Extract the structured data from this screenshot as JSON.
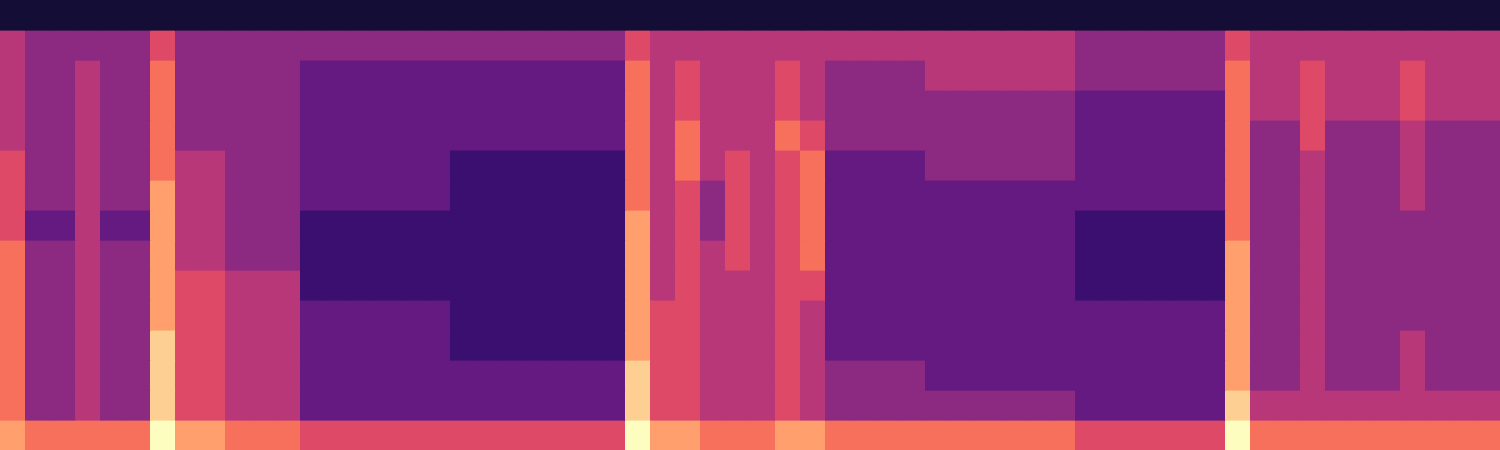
{
  "chart_data": {
    "type": "heatmap",
    "tick_labels": false,
    "xlim": [
      0,
      60
    ],
    "ylim": [
      0,
      15
    ],
    "color_range": [
      0,
      10
    ],
    "cells": [
      [
        8,
        7,
        7,
        7,
        7,
        7,
        10,
        8,
        8,
        7,
        7,
        7,
        6,
        6,
        6,
        6,
        6,
        6,
        6,
        6,
        6,
        6,
        6,
        6,
        6,
        10,
        8,
        8,
        7,
        7,
        7,
        8,
        8,
        7,
        7,
        7,
        7,
        7,
        7,
        7,
        7,
        7,
        7,
        6,
        6,
        6,
        6,
        6,
        6,
        10,
        7,
        7,
        7,
        7,
        7,
        7,
        7,
        7,
        7,
        7
      ],
      [
        7,
        4,
        4,
        5,
        4,
        4,
        9,
        6,
        6,
        5,
        5,
        5,
        3,
        3,
        3,
        3,
        3,
        3,
        3,
        3,
        3,
        3,
        3,
        3,
        3,
        9,
        6,
        6,
        5,
        5,
        5,
        6,
        5,
        4,
        4,
        4,
        4,
        4,
        4,
        4,
        4,
        4,
        4,
        3,
        3,
        3,
        3,
        3,
        3,
        9,
        5,
        5,
        5,
        5,
        5,
        5,
        5,
        5,
        5,
        5
      ],
      [
        7,
        4,
        4,
        5,
        4,
        4,
        9,
        6,
        6,
        5,
        5,
        5,
        3,
        3,
        3,
        3,
        3,
        3,
        3,
        3,
        3,
        3,
        3,
        3,
        3,
        9,
        6,
        6,
        5,
        5,
        5,
        6,
        5,
        4,
        4,
        4,
        4,
        3,
        3,
        3,
        3,
        3,
        3,
        3,
        3,
        3,
        3,
        3,
        3,
        8,
        4,
        4,
        5,
        4,
        4,
        4,
        5,
        4,
        4,
        4
      ],
      [
        7,
        4,
        4,
        5,
        4,
        4,
        9,
        6,
        6,
        5,
        5,
        5,
        3,
        3,
        3,
        3,
        3,
        3,
        2,
        2,
        2,
        2,
        2,
        2,
        2,
        8,
        6,
        6,
        5,
        5,
        5,
        6,
        5,
        3,
        3,
        3,
        3,
        3,
        3,
        3,
        3,
        3,
        3,
        3,
        3,
        3,
        3,
        3,
        3,
        8,
        4,
        4,
        5,
        4,
        4,
        4,
        5,
        4,
        4,
        4
      ],
      [
        7,
        4,
        4,
        5,
        4,
        4,
        8,
        6,
        6,
        5,
        5,
        5,
        3,
        3,
        3,
        3,
        3,
        3,
        2,
        2,
        2,
        2,
        2,
        2,
        2,
        8,
        6,
        6,
        5,
        5,
        5,
        6,
        5,
        3,
        3,
        3,
        3,
        3,
        3,
        3,
        3,
        3,
        3,
        3,
        3,
        3,
        3,
        3,
        3,
        8,
        4,
        4,
        5,
        4,
        4,
        4,
        4,
        4,
        4,
        4
      ],
      [
        7,
        4,
        4,
        5,
        4,
        4,
        8,
        6,
        6,
        5,
        5,
        5,
        2,
        2,
        2,
        2,
        2,
        2,
        2,
        2,
        2,
        2,
        2,
        2,
        2,
        8,
        5,
        6,
        5,
        5,
        5,
        6,
        6,
        3,
        3,
        3,
        3,
        3,
        3,
        3,
        3,
        3,
        3,
        2,
        2,
        2,
        2,
        2,
        2,
        8,
        4,
        4,
        5,
        4,
        4,
        4,
        4,
        4,
        4,
        4
      ],
      [
        7,
        4,
        4,
        5,
        4,
        4,
        8,
        5,
        5,
        4,
        4,
        4,
        2,
        2,
        2,
        2,
        2,
        2,
        2,
        2,
        2,
        2,
        2,
        2,
        2,
        8,
        5,
        6,
        5,
        6,
        5,
        6,
        7,
        3,
        3,
        3,
        3,
        3,
        3,
        3,
        3,
        3,
        3,
        2,
        2,
        2,
        2,
        2,
        2,
        8,
        4,
        4,
        5,
        4,
        4,
        4,
        4,
        4,
        4,
        4
      ],
      [
        6,
        3,
        3,
        5,
        3,
        3,
        8,
        5,
        5,
        4,
        4,
        4,
        2,
        2,
        2,
        2,
        2,
        2,
        2,
        2,
        2,
        2,
        2,
        2,
        2,
        8,
        5,
        6,
        4,
        6,
        5,
        6,
        7,
        3,
        3,
        3,
        3,
        3,
        3,
        3,
        3,
        3,
        3,
        2,
        2,
        2,
        2,
        2,
        2,
        7,
        4,
        4,
        5,
        4,
        4,
        4,
        4,
        4,
        4,
        4
      ],
      [
        6,
        4,
        4,
        5,
        4,
        4,
        8,
        5,
        5,
        4,
        4,
        4,
        3,
        3,
        3,
        3,
        3,
        3,
        2,
        2,
        2,
        2,
        2,
        2,
        2,
        7,
        5,
        6,
        4,
        6,
        5,
        6,
        7,
        3,
        3,
        3,
        3,
        3,
        3,
        3,
        3,
        3,
        3,
        3,
        3,
        3,
        3,
        3,
        3,
        7,
        4,
        4,
        5,
        4,
        4,
        4,
        5,
        4,
        4,
        4
      ],
      [
        6,
        4,
        4,
        5,
        4,
        4,
        7,
        5,
        5,
        4,
        4,
        4,
        3,
        3,
        3,
        3,
        3,
        3,
        2,
        2,
        2,
        2,
        2,
        2,
        2,
        7,
        5,
        7,
        5,
        6,
        5,
        6,
        7,
        3,
        3,
        3,
        3,
        4,
        4,
        4,
        4,
        4,
        4,
        3,
        3,
        3,
        3,
        3,
        3,
        7,
        4,
        4,
        5,
        4,
        4,
        4,
        5,
        4,
        4,
        4
      ],
      [
        5,
        4,
        4,
        5,
        4,
        4,
        7,
        4,
        4,
        4,
        4,
        4,
        3,
        3,
        3,
        3,
        3,
        3,
        3,
        3,
        3,
        3,
        3,
        3,
        3,
        7,
        5,
        7,
        5,
        5,
        5,
        7,
        6,
        4,
        4,
        4,
        4,
        4,
        4,
        4,
        4,
        4,
        4,
        3,
        3,
        3,
        3,
        3,
        3,
        7,
        4,
        4,
        6,
        4,
        4,
        4,
        5,
        4,
        4,
        4
      ],
      [
        5,
        4,
        4,
        5,
        4,
        4,
        7,
        4,
        4,
        4,
        4,
        4,
        3,
        3,
        3,
        3,
        3,
        3,
        3,
        3,
        3,
        3,
        3,
        3,
        3,
        7,
        5,
        6,
        5,
        5,
        5,
        6,
        5,
        4,
        4,
        4,
        4,
        4,
        4,
        4,
        4,
        4,
        4,
        3,
        3,
        3,
        3,
        3,
        3,
        7,
        5,
        5,
        6,
        5,
        5,
        5,
        6,
        5,
        5,
        5
      ],
      [
        5,
        4,
        4,
        5,
        4,
        4,
        7,
        4,
        4,
        4,
        4,
        4,
        3,
        3,
        3,
        3,
        3,
        3,
        3,
        3,
        3,
        3,
        3,
        3,
        3,
        7,
        5,
        6,
        5,
        5,
        5,
        6,
        5,
        4,
        4,
        4,
        4,
        5,
        5,
        5,
        5,
        5,
        5,
        4,
        4,
        4,
        4,
        4,
        4,
        7,
        5,
        5,
        6,
        5,
        5,
        5,
        6,
        5,
        5,
        5
      ],
      [
        5,
        4,
        4,
        4,
        4,
        4,
        6,
        4,
        4,
        4,
        4,
        4,
        4,
        4,
        4,
        4,
        4,
        4,
        4,
        4,
        4,
        4,
        4,
        4,
        4,
        6,
        5,
        5,
        5,
        5,
        5,
        5,
        5,
        5,
        5,
        5,
        5,
        5,
        5,
        5,
        5,
        5,
        5,
        4,
        4,
        4,
        4,
        4,
        4,
        6,
        5,
        5,
        5,
        5,
        5,
        5,
        5,
        5,
        5,
        5
      ],
      [
        1,
        1,
        1,
        1,
        1,
        1,
        1,
        1,
        1,
        1,
        1,
        1,
        1,
        1,
        1,
        1,
        1,
        1,
        1,
        1,
        1,
        1,
        1,
        1,
        1,
        1,
        1,
        1,
        1,
        1,
        1,
        1,
        1,
        1,
        1,
        1,
        1,
        1,
        1,
        1,
        1,
        1,
        1,
        1,
        1,
        1,
        1,
        1,
        1,
        1,
        1,
        1,
        1,
        1,
        1,
        1,
        1,
        1,
        1,
        1
      ]
    ]
  }
}
